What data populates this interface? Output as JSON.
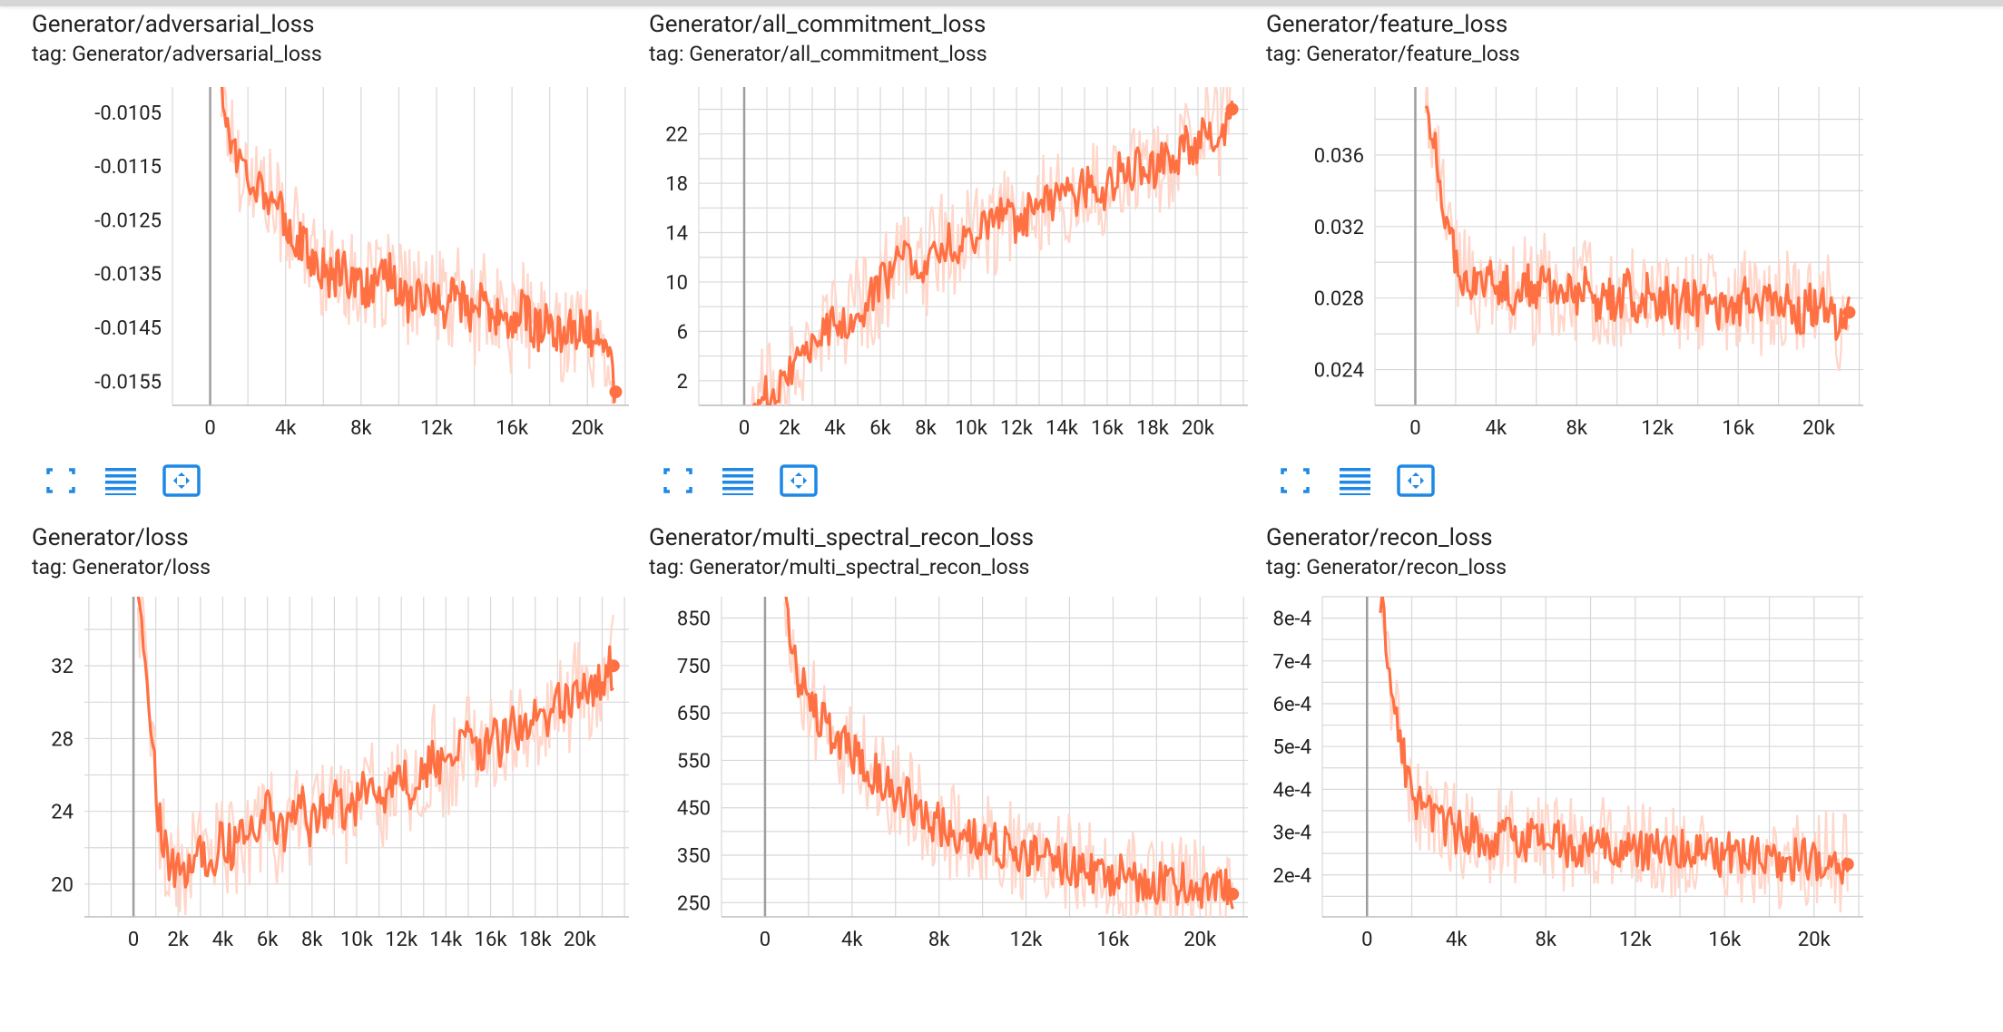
{
  "accent_color": "#ff7043",
  "raw_color": "#ffd6c9",
  "grid_color": "#d8d8d8",
  "toolbar_icons": [
    "fit-to-screen-icon",
    "toggle-log-scale-icon",
    "fit-domain-icon"
  ],
  "cards": [
    {
      "title": "Generator/adversarial_loss",
      "tag": "tag: Generator/adversarial_loss"
    },
    {
      "title": "Generator/all_commitment_loss",
      "tag": "tag: Generator/all_commitment_loss"
    },
    {
      "title": "Generator/feature_loss",
      "tag": "tag: Generator/feature_loss"
    },
    {
      "title": "Generator/loss",
      "tag": "tag: Generator/loss"
    },
    {
      "title": "Generator/multi_spectral_recon_loss",
      "tag": "tag: Generator/multi_spectral_recon_loss"
    },
    {
      "title": "Generator/recon_loss",
      "tag": "tag: Generator/recon_loss"
    }
  ],
  "chart_data": [
    {
      "type": "line",
      "title": "Generator/adversarial_loss",
      "xlim": [
        -2000,
        22200
      ],
      "ylim": [
        -0.01595,
        -0.01003
      ],
      "xticks": [
        {
          "v": 0,
          "label": "0"
        },
        {
          "v": 4000,
          "label": "4k"
        },
        {
          "v": 8000,
          "label": "8k"
        },
        {
          "v": 12000,
          "label": "12k"
        },
        {
          "v": 16000,
          "label": "16k"
        },
        {
          "v": 20000,
          "label": "20k"
        }
      ],
      "yticks": [
        {
          "v": -0.0105,
          "label": "-0.0105"
        },
        {
          "v": -0.0115,
          "label": "-0.0115"
        },
        {
          "v": -0.0125,
          "label": "-0.0125"
        },
        {
          "v": -0.0135,
          "label": "-0.0135"
        },
        {
          "v": -0.0145,
          "label": "-0.0145"
        },
        {
          "v": -0.0155,
          "label": "-0.0155"
        }
      ],
      "series": [
        {
          "x": [
            600,
            1000,
            1500,
            2000,
            2500,
            3000,
            3500,
            4000,
            4500,
            5000,
            5500,
            6000,
            6500,
            7000,
            7500,
            8000,
            8500,
            9000,
            9500,
            10000,
            10500,
            11000,
            11500,
            12000,
            12500,
            13000,
            13500,
            14000,
            14500,
            15000,
            15500,
            16000,
            16500,
            17000,
            17500,
            18000,
            18500,
            19000,
            19500,
            20000,
            20500,
            21000,
            21500
          ],
          "y": [
            -0.0101,
            -0.0108,
            -0.0114,
            -0.0116,
            -0.0118,
            -0.012,
            -0.0123,
            -0.0125,
            -0.0128,
            -0.013,
            -0.0133,
            -0.0134,
            -0.0136,
            -0.0133,
            -0.0137,
            -0.0136,
            -0.0139,
            -0.0137,
            -0.0135,
            -0.0138,
            -0.014,
            -0.0137,
            -0.0141,
            -0.0139,
            -0.0142,
            -0.0138,
            -0.0141,
            -0.0143,
            -0.014,
            -0.0144,
            -0.0142,
            -0.0145,
            -0.0141,
            -0.0144,
            -0.0146,
            -0.0143,
            -0.0147,
            -0.0144,
            -0.0146,
            -0.0145,
            -0.0149,
            -0.0147,
            -0.0157
          ]
        }
      ]
    },
    {
      "type": "line",
      "title": "Generator/all_commitment_loss",
      "xlim": [
        -2000,
        22200
      ],
      "ylim": [
        0,
        25.8
      ],
      "xticks": [
        {
          "v": 0,
          "label": "0"
        },
        {
          "v": 2000,
          "label": "2k"
        },
        {
          "v": 4000,
          "label": "4k"
        },
        {
          "v": 6000,
          "label": "6k"
        },
        {
          "v": 8000,
          "label": "8k"
        },
        {
          "v": 10000,
          "label": "10k"
        },
        {
          "v": 12000,
          "label": "12k"
        },
        {
          "v": 14000,
          "label": "14k"
        },
        {
          "v": 16000,
          "label": "16k"
        },
        {
          "v": 18000,
          "label": "18k"
        },
        {
          "v": 20000,
          "label": "20k"
        }
      ],
      "yticks": [
        {
          "v": 2,
          "label": "2"
        },
        {
          "v": 6,
          "label": "6"
        },
        {
          "v": 10,
          "label": "10"
        },
        {
          "v": 14,
          "label": "14"
        },
        {
          "v": 18,
          "label": "18"
        },
        {
          "v": 22,
          "label": "22"
        }
      ],
      "series": [
        {
          "x": [
            300,
            1000,
            1500,
            2000,
            2500,
            3000,
            3500,
            4000,
            4500,
            5000,
            5500,
            6000,
            6500,
            7000,
            7500,
            8000,
            8500,
            9000,
            9500,
            10000,
            10500,
            11000,
            11500,
            12000,
            12500,
            13000,
            13500,
            14000,
            14500,
            15000,
            15500,
            16000,
            16500,
            17000,
            17500,
            18000,
            18500,
            19000,
            19500,
            20000,
            20500,
            21000,
            21500
          ],
          "y": [
            0.1,
            0.8,
            1.8,
            3.0,
            4.2,
            5.0,
            6.0,
            6.8,
            7.2,
            7.8,
            8.5,
            9.5,
            10.8,
            11.5,
            12.5,
            11.2,
            12.8,
            13.5,
            12.5,
            13.8,
            14.5,
            14.2,
            15.5,
            14.8,
            15.6,
            16.5,
            15.8,
            17.2,
            16.5,
            17.8,
            18.4,
            17.2,
            18.8,
            18.5,
            19.5,
            18.8,
            20.2,
            19.8,
            21.5,
            20.8,
            22.5,
            22.2,
            24.0
          ]
        }
      ]
    },
    {
      "type": "line",
      "title": "Generator/feature_loss",
      "xlim": [
        -2000,
        22200
      ],
      "ylim": [
        0.022,
        0.0398
      ],
      "xticks": [
        {
          "v": 0,
          "label": "0"
        },
        {
          "v": 4000,
          "label": "4k"
        },
        {
          "v": 8000,
          "label": "8k"
        },
        {
          "v": 12000,
          "label": "12k"
        },
        {
          "v": 16000,
          "label": "16k"
        },
        {
          "v": 20000,
          "label": "20k"
        }
      ],
      "yticks": [
        {
          "v": 0.024,
          "label": "0.024"
        },
        {
          "v": 0.028,
          "label": "0.028"
        },
        {
          "v": 0.032,
          "label": "0.032"
        },
        {
          "v": 0.036,
          "label": "0.036"
        }
      ],
      "series": [
        {
          "x": [
            500,
            1000,
            1500,
            2000,
            2500,
            3000,
            3500,
            4000,
            4500,
            5000,
            5500,
            6000,
            6500,
            7000,
            7500,
            8000,
            8500,
            9000,
            9500,
            10000,
            10500,
            11000,
            11500,
            12000,
            12500,
            13000,
            13500,
            14000,
            14500,
            15000,
            15500,
            16000,
            16500,
            17000,
            17500,
            18000,
            18500,
            19000,
            19500,
            20000,
            20500,
            21000,
            21500
          ],
          "y": [
            0.039,
            0.036,
            0.0325,
            0.0305,
            0.029,
            0.0285,
            0.0295,
            0.0282,
            0.029,
            0.028,
            0.0288,
            0.0278,
            0.0292,
            0.0276,
            0.0285,
            0.0279,
            0.0287,
            0.0274,
            0.0283,
            0.0277,
            0.0286,
            0.0273,
            0.0282,
            0.0275,
            0.0281,
            0.0272,
            0.0284,
            0.0274,
            0.028,
            0.0271,
            0.0279,
            0.0274,
            0.0282,
            0.027,
            0.0278,
            0.0273,
            0.0281,
            0.0269,
            0.0277,
            0.0272,
            0.0279,
            0.0265,
            0.0272
          ]
        }
      ]
    },
    {
      "type": "line",
      "title": "Generator/loss",
      "xlim": [
        -2200,
        22200
      ],
      "ylim": [
        18.2,
        35.8
      ],
      "xticks": [
        {
          "v": 0,
          "label": "0"
        },
        {
          "v": 2000,
          "label": "2k"
        },
        {
          "v": 4000,
          "label": "4k"
        },
        {
          "v": 6000,
          "label": "6k"
        },
        {
          "v": 8000,
          "label": "8k"
        },
        {
          "v": 10000,
          "label": "10k"
        },
        {
          "v": 12000,
          "label": "12k"
        },
        {
          "v": 14000,
          "label": "14k"
        },
        {
          "v": 16000,
          "label": "16k"
        },
        {
          "v": 18000,
          "label": "18k"
        },
        {
          "v": 20000,
          "label": "20k"
        }
      ],
      "yticks": [
        {
          "v": 20,
          "label": "20"
        },
        {
          "v": 24,
          "label": "24"
        },
        {
          "v": 28,
          "label": "28"
        },
        {
          "v": 32,
          "label": "32"
        }
      ],
      "series": [
        {
          "x": [
            200,
            500,
            800,
            1100,
            1500,
            2000,
            2500,
            3000,
            3500,
            4000,
            4500,
            5000,
            5500,
            6000,
            6500,
            7000,
            7500,
            8000,
            8500,
            9000,
            9500,
            10000,
            10500,
            11000,
            11500,
            12000,
            12500,
            13000,
            13500,
            14000,
            14500,
            15000,
            15500,
            16000,
            16500,
            17000,
            17500,
            18000,
            18500,
            19000,
            19500,
            20000,
            20500,
            21000,
            21500
          ],
          "y": [
            35.5,
            33.0,
            28.0,
            24.0,
            21.5,
            20.5,
            21.0,
            22.0,
            21.2,
            22.5,
            21.8,
            23.0,
            22.2,
            24.0,
            22.5,
            23.5,
            24.5,
            23.0,
            24.2,
            25.0,
            23.8,
            24.5,
            25.8,
            24.2,
            25.5,
            26.5,
            25.0,
            26.2,
            27.2,
            25.8,
            27.0,
            28.0,
            26.8,
            28.5,
            27.5,
            29.0,
            28.2,
            29.5,
            28.8,
            30.5,
            29.8,
            31.0,
            30.2,
            31.5,
            32.0
          ]
        }
      ]
    },
    {
      "type": "line",
      "title": "Generator/multi_spectral_recon_loss",
      "xlim": [
        -2000,
        22200
      ],
      "ylim": [
        220,
        895
      ],
      "xticks": [
        {
          "v": 0,
          "label": "0"
        },
        {
          "v": 4000,
          "label": "4k"
        },
        {
          "v": 8000,
          "label": "8k"
        },
        {
          "v": 12000,
          "label": "12k"
        },
        {
          "v": 16000,
          "label": "16k"
        },
        {
          "v": 20000,
          "label": "20k"
        }
      ],
      "yticks": [
        {
          "v": 250,
          "label": "250"
        },
        {
          "v": 350,
          "label": "350"
        },
        {
          "v": 450,
          "label": "450"
        },
        {
          "v": 550,
          "label": "550"
        },
        {
          "v": 650,
          "label": "650"
        },
        {
          "v": 750,
          "label": "750"
        },
        {
          "v": 850,
          "label": "850"
        }
      ],
      "series": [
        {
          "x": [
            900,
            1200,
            1500,
            2000,
            2500,
            3000,
            3500,
            4000,
            4500,
            5000,
            5500,
            6000,
            6500,
            7000,
            7500,
            8000,
            8500,
            9000,
            9500,
            10000,
            10500,
            11000,
            11500,
            12000,
            12500,
            13000,
            13500,
            14000,
            14500,
            15000,
            15500,
            16000,
            16500,
            17000,
            17500,
            18000,
            18500,
            19000,
            19500,
            20000,
            20500,
            21000,
            21500
          ],
          "y": [
            880,
            800,
            730,
            680,
            640,
            610,
            585,
            565,
            545,
            525,
            505,
            480,
            470,
            450,
            430,
            420,
            405,
            398,
            390,
            380,
            372,
            365,
            358,
            352,
            345,
            340,
            335,
            330,
            322,
            318,
            312,
            308,
            303,
            300,
            297,
            293,
            290,
            288,
            285,
            283,
            280,
            282,
            268
          ]
        }
      ]
    },
    {
      "type": "line",
      "title": "Generator/recon_loss",
      "xlim": [
        -2000,
        22200
      ],
      "ylim": [
        0.000102,
        0.00085
      ],
      "xticks": [
        {
          "v": 0,
          "label": "0"
        },
        {
          "v": 4000,
          "label": "4k"
        },
        {
          "v": 8000,
          "label": "8k"
        },
        {
          "v": 12000,
          "label": "12k"
        },
        {
          "v": 16000,
          "label": "16k"
        },
        {
          "v": 20000,
          "label": "20k"
        }
      ],
      "yticks": [
        {
          "v": 0.0002,
          "label": "2e-4"
        },
        {
          "v": 0.0003,
          "label": "3e-4"
        },
        {
          "v": 0.0004,
          "label": "4e-4"
        },
        {
          "v": 0.0005,
          "label": "5e-4"
        },
        {
          "v": 0.0006,
          "label": "6e-4"
        },
        {
          "v": 0.0007,
          "label": "7e-4"
        },
        {
          "v": 0.0008,
          "label": "8e-4"
        }
      ],
      "series": [
        {
          "x": [
            600,
            900,
            1200,
            1500,
            1800,
            2200,
            2600,
            3000,
            3500,
            4000,
            4500,
            5000,
            5500,
            6000,
            6500,
            7000,
            7500,
            8000,
            8500,
            9000,
            9500,
            10000,
            10500,
            11000,
            11500,
            12000,
            12500,
            13000,
            13500,
            14000,
            14500,
            15000,
            15500,
            16000,
            16500,
            17000,
            17500,
            18000,
            18500,
            19000,
            19500,
            20000,
            20500,
            21000,
            21500
          ],
          "y": [
            0.00084,
            0.00072,
            0.0006,
            0.0005,
            0.00043,
            0.00038,
            0.00035,
            0.00033,
            0.00031,
            0.0003,
            0.00029,
            0.000295,
            0.000285,
            0.00029,
            0.00028,
            0.000285,
            0.000278,
            0.00028,
            0.000275,
            0.00027,
            0.000272,
            0.000268,
            0.00027,
            0.000265,
            0.000262,
            0.000266,
            0.00026,
            0.000258,
            0.000255,
            0.000252,
            0.000256,
            0.00025,
            0.000248,
            0.000245,
            0.00025,
            0.000242,
            0.000245,
            0.00024,
            0.000238,
            0.000236,
            0.000238,
            0.000232,
            0.00023,
            0.000228,
            0.000225
          ]
        }
      ]
    }
  ]
}
